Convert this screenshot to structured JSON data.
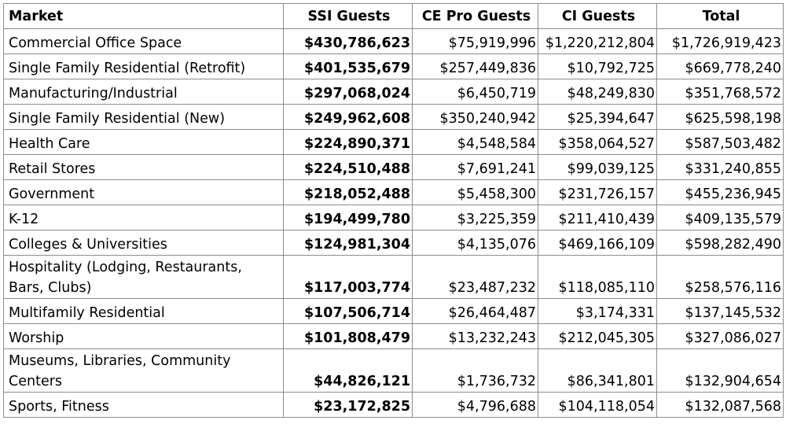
{
  "table": {
    "headers": [
      "Market",
      "SSI Guests",
      "CE Pro Guests",
      "CI Guests",
      "Total"
    ],
    "rows": [
      [
        "Commercial Office Space",
        "$430,786,623",
        "$75,919,996",
        "$1,220,212,804",
        "$1,726,919,423"
      ],
      [
        "Single Family Residential (Retrofit)",
        "$401,535,679",
        "$257,449,836",
        "$10,792,725",
        "$669,778,240"
      ],
      [
        "Manufacturing/Industrial",
        "$297,068,024",
        "$6,450,719",
        "$48,249,830",
        "$351,768,572"
      ],
      [
        "Single Family Residential (New)",
        "$249,962,608",
        "$350,240,942",
        "$25,394,647",
        "$625,598,198"
      ],
      [
        "Health Care",
        "$224,890,371",
        "$4,548,584",
        "$358,064,527",
        "$587,503,482"
      ],
      [
        "Retail Stores",
        "$224,510,488",
        "$7,691,241",
        "$99,039,125",
        "$331,240,855"
      ],
      [
        "Government",
        "$218,052,488",
        "$5,458,300",
        "$231,726,157",
        "$455,236,945"
      ],
      [
        "K-12",
        "$194,499,780",
        "$3,225,359",
        "$211,410,439",
        "$409,135,579"
      ],
      [
        "Colleges & Universities",
        "$124,981,304",
        "$4,135,076",
        "$469,166,109",
        "$598,282,490"
      ],
      [
        "Hospitality (Lodging, Restaurants, Bars, Clubs)",
        "$117,003,774",
        "$23,487,232",
        "$118,085,110",
        "$258,576,116"
      ],
      [
        "Multifamily Residential",
        "$107,506,714",
        "$26,464,487",
        "$3,174,331",
        "$137,145,532"
      ],
      [
        "Worship",
        "$101,808,479",
        "$13,232,243",
        "$212,045,305",
        "$327,086,027"
      ],
      [
        "Museums, Libraries, Community Centers",
        "$44,826,121",
        "$1,736,732",
        "$86,341,801",
        "$132,904,654"
      ],
      [
        "Sports, Fitness",
        "$23,172,825",
        "$4,796,688",
        "$104,118,054",
        "$132,087,568"
      ]
    ]
  },
  "colors": {
    "border": "#8c8c8c",
    "text": "#000000",
    "background": "#ffffff"
  }
}
